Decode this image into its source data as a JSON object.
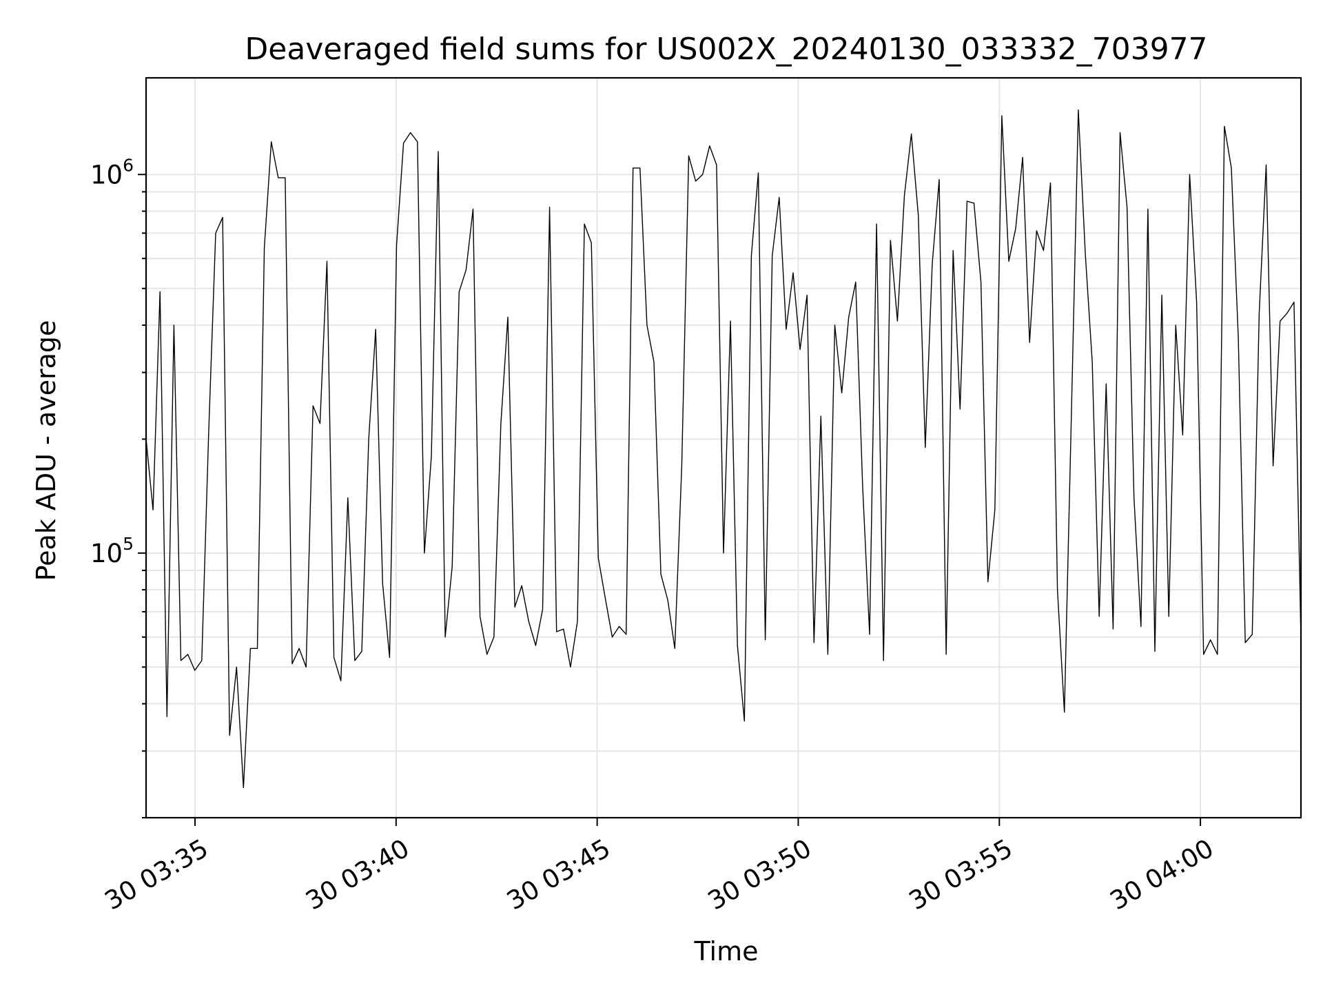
{
  "chart_data": {
    "type": "line",
    "title": "Deaveraged field sums for US002X_20240130_033332_703977",
    "xlabel": "Time",
    "ylabel": "Peak ADU - average",
    "yscale": "log",
    "grid": true,
    "xlim": [
      "2024-01-30 03:33:47",
      "2024-01-30 04:02:30"
    ],
    "ylim": [
      20000,
      1800000
    ],
    "xticks": [
      {
        "value": "2024-01-30 03:35:00",
        "label": "30 03:35"
      },
      {
        "value": "2024-01-30 03:40:00",
        "label": "30 03:40"
      },
      {
        "value": "2024-01-30 03:45:00",
        "label": "30 03:45"
      },
      {
        "value": "2024-01-30 03:50:00",
        "label": "30 03:50"
      },
      {
        "value": "2024-01-30 03:55:00",
        "label": "30 03:55"
      },
      {
        "value": "2024-01-30 04:00:00",
        "label": "30 04:00"
      }
    ],
    "yticks": [
      {
        "value": 100000,
        "base": "10",
        "exp": "5"
      },
      {
        "value": 1000000,
        "base": "10",
        "exp": "6"
      }
    ],
    "series": [
      {
        "color": "#000000",
        "x_start": "2024-01-30 03:33:47",
        "x_end": "2024-01-30 04:02:30",
        "values": [
          200000,
          130000,
          490000,
          37000,
          400000,
          52000,
          54000,
          49000,
          52000,
          210000,
          700000,
          770000,
          33000,
          50000,
          24000,
          56000,
          56000,
          640000,
          1220000,
          980000,
          980000,
          51000,
          56000,
          50000,
          245000,
          220000,
          590000,
          53000,
          46000,
          140000,
          52000,
          55000,
          200000,
          390000,
          83000,
          53000,
          650000,
          1210000,
          1290000,
          1220000,
          100000,
          180000,
          1150000,
          60000,
          92000,
          490000,
          560000,
          810000,
          68000,
          54000,
          60000,
          220000,
          420000,
          72000,
          82000,
          66000,
          57000,
          71000,
          820000,
          62000,
          63000,
          50000,
          66000,
          740000,
          660000,
          97000,
          76000,
          60000,
          64000,
          61000,
          1040000,
          1040000,
          400000,
          320000,
          88000,
          75000,
          56000,
          170000,
          1120000,
          960000,
          1000000,
          1190000,
          1060000,
          100000,
          410000,
          57000,
          36000,
          610000,
          1010000,
          59000,
          610000,
          870000,
          390000,
          550000,
          345000,
          480000,
          58000,
          230000,
          54000,
          400000,
          265000,
          420000,
          520000,
          150000,
          61000,
          740000,
          52000,
          670000,
          410000,
          880000,
          1280000,
          780000,
          190000,
          580000,
          970000,
          54000,
          630000,
          240000,
          850000,
          840000,
          520000,
          84000,
          130000,
          1430000,
          590000,
          720000,
          1110000,
          360000,
          710000,
          630000,
          950000,
          80000,
          38000,
          230000,
          1480000,
          620000,
          320000,
          68000,
          280000,
          63000,
          1290000,
          820000,
          140000,
          64000,
          810000,
          55000,
          480000,
          68000,
          400000,
          205000,
          1000000,
          460000,
          54000,
          59000,
          54000,
          1340000,
          1040000,
          370000,
          58000,
          61000,
          430000,
          1060000,
          170000,
          410000,
          430000,
          460000,
          60000
        ]
      }
    ]
  }
}
